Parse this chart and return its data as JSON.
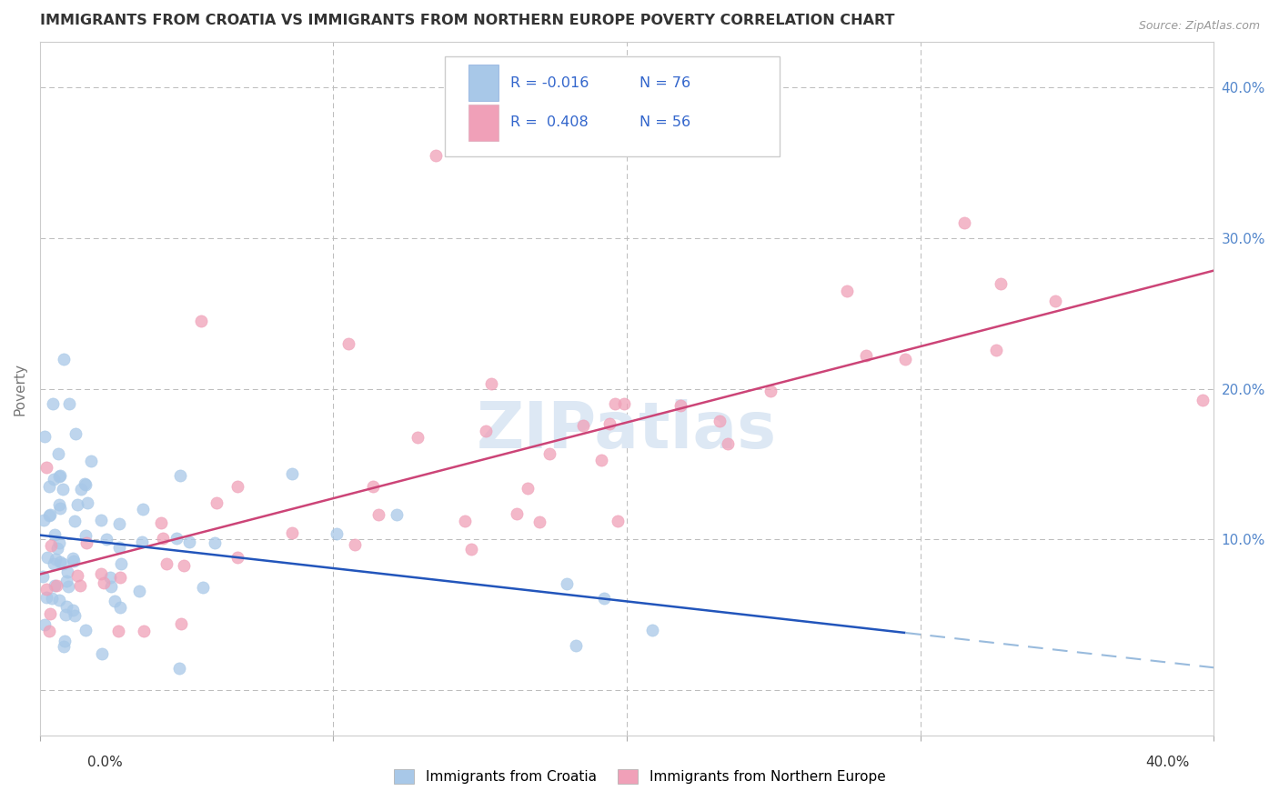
{
  "title": "IMMIGRANTS FROM CROATIA VS IMMIGRANTS FROM NORTHERN EUROPE POVERTY CORRELATION CHART",
  "source": "Source: ZipAtlas.com",
  "ylabel": "Poverty",
  "legend1_r": "-0.016",
  "legend1_n": "76",
  "legend2_r": "0.408",
  "legend2_n": "56",
  "color_croatia": "#A8C8E8",
  "color_northern": "#F0A0B8",
  "trendline_croatia_solid_color": "#2255BB",
  "trendline_northern_color": "#CC4477",
  "trendline_dashed_color": "#99BBDD",
  "watermark_text": "ZIPatlas",
  "background_color": "#FFFFFF",
  "grid_color": "#BBBBBB",
  "xlim": [
    0.0,
    0.4
  ],
  "ylim": [
    -0.03,
    0.43
  ],
  "ytick_vals": [
    0.1,
    0.2,
    0.3,
    0.4
  ],
  "ytick_labels": [
    "10.0%",
    "20.0%",
    "30.0%",
    "40.0%"
  ],
  "title_color": "#333333",
  "ytick_color": "#5588CC",
  "ylabel_color": "#777777"
}
